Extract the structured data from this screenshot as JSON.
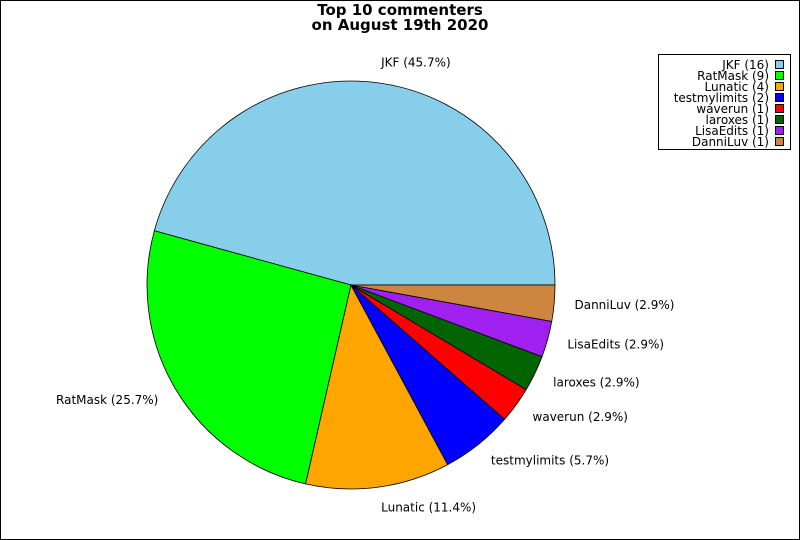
{
  "chart_data": {
    "type": "pie",
    "title": [
      "Top 10 commenters",
      "on August 19th 2020"
    ],
    "categories": [
      "JKF",
      "RatMask",
      "Lunatic",
      "testmylimits",
      "waverun",
      "laroxes",
      "LisaEdits",
      "DanniLuv"
    ],
    "values": [
      16,
      9,
      4,
      2,
      1,
      1,
      1,
      1
    ],
    "slice_labels": [
      "JKF (45.7%)",
      "RatMask (25.7%)",
      "Lunatic (11.4%)",
      "testmylimits (5.7%)",
      "waverun (2.9%)",
      "laroxes (2.9%)",
      "LisaEdits (2.9%)",
      "DanniLuv (2.9%)"
    ],
    "colors": [
      "#87ceeb",
      "#00ff00",
      "#ffa500",
      "#0000ff",
      "#ff0000",
      "#006400",
      "#a020f0",
      "#cd853f"
    ],
    "legend": {
      "placement": "top-right",
      "entries": [
        "JKF (16)",
        "RatMask (9)",
        "Lunatic (4)",
        "testmylimits (2)",
        "waverun (1)",
        "laroxes (1)",
        "LisaEdits (1)",
        "DanniLuv (1)"
      ]
    }
  }
}
